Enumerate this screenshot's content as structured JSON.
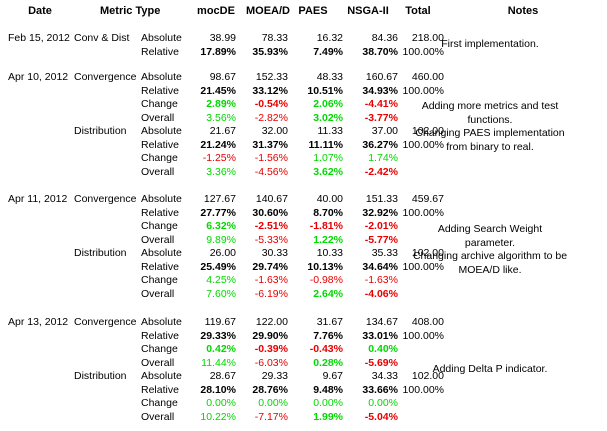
{
  "headers": {
    "date": "Date",
    "metric_type": "Metric Type",
    "mocde": "mocDE",
    "moead": "MOEA/D",
    "paes": "PAES",
    "nsga": "NSGA-II",
    "total": "Total",
    "notes": "Notes"
  },
  "colors": {
    "green": "#00d800",
    "red": "#e80000",
    "text": "#000000"
  },
  "groups": [
    {
      "date": "Feb 15, 2012",
      "notes": [
        "First implementation."
      ],
      "blocks": [
        {
          "type": "Conv & Dist",
          "rows": [
            {
              "metric": "Absolute",
              "values": [
                "38.99",
                "78.33",
                "16.32",
                "84.36"
              ],
              "colors": [
                "",
                "",
                "",
                ""
              ],
              "bold": false,
              "total": "218.00"
            },
            {
              "metric": "Relative",
              "values": [
                "17.89%",
                "35.93%",
                "7.49%",
                "38.70%"
              ],
              "colors": [
                "",
                "",
                "",
                ""
              ],
              "bold": true,
              "total": "100.00%"
            }
          ]
        }
      ]
    },
    {
      "date": "Apr 10, 2012",
      "notes": [
        "Adding more metrics and test",
        "functions.",
        "Changing PAES implementation",
        "from binary to real."
      ],
      "blocks": [
        {
          "type": "Convergence",
          "rows": [
            {
              "metric": "Absolute",
              "values": [
                "98.67",
                "152.33",
                "48.33",
                "160.67"
              ],
              "colors": [
                "",
                "",
                "",
                ""
              ],
              "bold": false,
              "total": "460.00"
            },
            {
              "metric": "Relative",
              "values": [
                "21.45%",
                "33.12%",
                "10.51%",
                "34.93%"
              ],
              "colors": [
                "",
                "",
                "",
                ""
              ],
              "bold": true,
              "total": "100.00%"
            },
            {
              "metric": "Change",
              "values": [
                "2.89%",
                "-0.54%",
                "2.06%",
                "-4.41%"
              ],
              "colors": [
                "green",
                "red",
                "green",
                "red"
              ],
              "bold": true,
              "total": ""
            },
            {
              "metric": "Overall",
              "values": [
                "3.56%",
                "-2.82%",
                "3.02%",
                "-3.77%"
              ],
              "colors": [
                "green",
                "red",
                "green",
                "red"
              ],
              "bold": false,
              "bolds": [
                false,
                false,
                true,
                true
              ],
              "total": ""
            }
          ]
        },
        {
          "type": "Distribution",
          "rows": [
            {
              "metric": "Absolute",
              "values": [
                "21.67",
                "32.00",
                "11.33",
                "37.00"
              ],
              "colors": [
                "",
                "",
                "",
                ""
              ],
              "bold": false,
              "total": "102.00"
            },
            {
              "metric": "Relative",
              "values": [
                "21.24%",
                "31.37%",
                "11.11%",
                "36.27%"
              ],
              "colors": [
                "",
                "",
                "",
                ""
              ],
              "bold": true,
              "total": "100.00%"
            },
            {
              "metric": "Change",
              "values": [
                "-1.25%",
                "-1.56%",
                "1.07%",
                "1.74%"
              ],
              "colors": [
                "red",
                "red",
                "green",
                "green"
              ],
              "bold": false,
              "total": ""
            },
            {
              "metric": "Overall",
              "values": [
                "3.36%",
                "-4.56%",
                "3.62%",
                "-2.42%"
              ],
              "colors": [
                "green",
                "red",
                "green",
                "red"
              ],
              "bold": false,
              "bolds": [
                false,
                false,
                true,
                true
              ],
              "total": ""
            }
          ]
        }
      ]
    },
    {
      "date": "Apr 11, 2012",
      "notes": [
        "Adding Search Weight",
        "parameter.",
        "Changing archive algorithm to be",
        "MOEA/D like."
      ],
      "blocks": [
        {
          "type": "Convergence",
          "rows": [
            {
              "metric": "Absolute",
              "values": [
                "127.67",
                "140.67",
                "40.00",
                "151.33"
              ],
              "colors": [
                "",
                "",
                "",
                ""
              ],
              "bold": false,
              "total": "459.67"
            },
            {
              "metric": "Relative",
              "values": [
                "27.77%",
                "30.60%",
                "8.70%",
                "32.92%"
              ],
              "colors": [
                "",
                "",
                "",
                ""
              ],
              "bold": true,
              "total": "100.00%"
            },
            {
              "metric": "Change",
              "values": [
                "6.32%",
                "-2.51%",
                "-1.81%",
                "-2.01%"
              ],
              "colors": [
                "green",
                "red",
                "red",
                "red"
              ],
              "bold": true,
              "total": ""
            },
            {
              "metric": "Overall",
              "values": [
                "9.89%",
                "-5.33%",
                "1.22%",
                "-5.77%"
              ],
              "colors": [
                "green",
                "red",
                "green",
                "red"
              ],
              "bold": false,
              "bolds": [
                false,
                false,
                true,
                true
              ],
              "total": ""
            }
          ]
        },
        {
          "type": "Distribution",
          "rows": [
            {
              "metric": "Absolute",
              "values": [
                "26.00",
                "30.33",
                "10.33",
                "35.33"
              ],
              "colors": [
                "",
                "",
                "",
                ""
              ],
              "bold": false,
              "total": "102.00"
            },
            {
              "metric": "Relative",
              "values": [
                "25.49%",
                "29.74%",
                "10.13%",
                "34.64%"
              ],
              "colors": [
                "",
                "",
                "",
                ""
              ],
              "bold": true,
              "total": "100.00%"
            },
            {
              "metric": "Change",
              "values": [
                "4.25%",
                "-1.63%",
                "-0.98%",
                "-1.63%"
              ],
              "colors": [
                "green",
                "red",
                "red",
                "red"
              ],
              "bold": false,
              "total": ""
            },
            {
              "metric": "Overall",
              "values": [
                "7.60%",
                "-6.19%",
                "2.64%",
                "-4.06%"
              ],
              "colors": [
                "green",
                "red",
                "green",
                "red"
              ],
              "bold": false,
              "bolds": [
                false,
                false,
                true,
                true
              ],
              "total": ""
            }
          ]
        }
      ]
    },
    {
      "date": "Apr 13, 2012",
      "notes": [
        "Adding Delta P indicator."
      ],
      "blocks": [
        {
          "type": "Convergence",
          "rows": [
            {
              "metric": "Absolute",
              "values": [
                "119.67",
                "122.00",
                "31.67",
                "134.67"
              ],
              "colors": [
                "",
                "",
                "",
                ""
              ],
              "bold": false,
              "total": "408.00"
            },
            {
              "metric": "Relative",
              "values": [
                "29.33%",
                "29.90%",
                "7.76%",
                "33.01%"
              ],
              "colors": [
                "",
                "",
                "",
                ""
              ],
              "bold": true,
              "total": "100.00%"
            },
            {
              "metric": "Change",
              "values": [
                "0.42%",
                "-0.39%",
                "-0.43%",
                "0.40%"
              ],
              "colors": [
                "green",
                "red",
                "red",
                "green"
              ],
              "bold": true,
              "total": ""
            },
            {
              "metric": "Overall",
              "values": [
                "11.44%",
                "-6.03%",
                "0.28%",
                "-5.69%"
              ],
              "colors": [
                "green",
                "red",
                "green",
                "red"
              ],
              "bold": false,
              "bolds": [
                false,
                false,
                true,
                true
              ],
              "total": ""
            }
          ]
        },
        {
          "type": "Distribution",
          "rows": [
            {
              "metric": "Absolute",
              "values": [
                "28.67",
                "29.33",
                "9.67",
                "34.33"
              ],
              "colors": [
                "",
                "",
                "",
                ""
              ],
              "bold": false,
              "total": "102.00"
            },
            {
              "metric": "Relative",
              "values": [
                "28.10%",
                "28.76%",
                "9.48%",
                "33.66%"
              ],
              "colors": [
                "",
                "",
                "",
                ""
              ],
              "bold": true,
              "total": "100.00%"
            },
            {
              "metric": "Change",
              "values": [
                "0.00%",
                "0.00%",
                "0.00%",
                "0.00%"
              ],
              "colors": [
                "green",
                "green",
                "green",
                "green"
              ],
              "bold": false,
              "total": ""
            },
            {
              "metric": "Overall",
              "values": [
                "10.22%",
                "-7.17%",
                "1.99%",
                "-5.04%"
              ],
              "colors": [
                "green",
                "red",
                "green",
                "red"
              ],
              "bold": false,
              "bolds": [
                false,
                false,
                true,
                true
              ],
              "total": ""
            }
          ]
        }
      ]
    }
  ]
}
